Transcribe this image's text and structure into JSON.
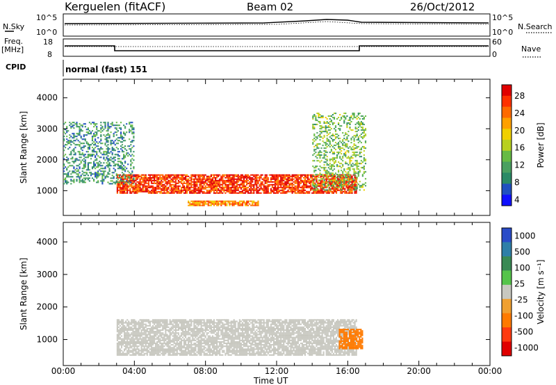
{
  "header": {
    "station": "Kerguelen (fitACF)",
    "beam": "Beam 02",
    "date": "26/Oct/2012"
  },
  "top_panels": {
    "nsky_label": "N.Sky",
    "nsearch_label": "N.Search",
    "nsky_ticks": [
      "10^5",
      "10^0"
    ],
    "nsearch_ticks": [
      "10^5",
      "10^0"
    ],
    "freq_label_line1": "Freq.",
    "freq_label_line2": "[MHz]",
    "freq_ticks": [
      "18",
      "8"
    ],
    "nave_label": "Nave",
    "nave_ticks": [
      "60",
      "0"
    ],
    "cpid_label": "CPID",
    "cpid_value": "normal (fast) 151"
  },
  "chart_data": [
    {
      "type": "heatmap",
      "name": "power",
      "ylabel": "Slant Range [km]",
      "xlabel": "Time UT",
      "xlim": [
        0,
        24
      ],
      "ylim": [
        200,
        4600
      ],
      "x_ticks": [
        "00:00",
        "04:00",
        "08:00",
        "12:00",
        "16:00",
        "20:00",
        "00:00"
      ],
      "y_ticks": [
        "1000",
        "2000",
        "3000",
        "4000"
      ],
      "colorbar": {
        "label": "Power [dB]",
        "ticks": [
          "4",
          "8",
          "12",
          "16",
          "20",
          "24",
          "28"
        ],
        "colors": [
          "#1010ff",
          "#2050c0",
          "#2a8a66",
          "#4aa060",
          "#66bb44",
          "#b8d020",
          "#f0d000",
          "#ffa000",
          "#ff6a00",
          "#ff3000",
          "#e00000"
        ]
      },
      "features": [
        {
          "desc": "main echo band",
          "time_h": [
            3.0,
            16.5
          ],
          "range_km": [
            900,
            1500
          ],
          "power_db": 26
        },
        {
          "desc": "lower band",
          "time_h": [
            7.0,
            11.0
          ],
          "range_km": [
            500,
            650
          ],
          "power_db": 22
        },
        {
          "desc": "morning weak echoes",
          "time_h": [
            0.0,
            4.0
          ],
          "range_km": [
            1200,
            3200
          ],
          "power_db": 8
        },
        {
          "desc": "afternoon structured echoes",
          "time_h": [
            14.0,
            17.0
          ],
          "range_km": [
            1000,
            3500
          ],
          "power_db": 12
        }
      ]
    },
    {
      "type": "heatmap",
      "name": "velocity",
      "ylabel": "Slant Range [km]",
      "xlabel": "Time UT",
      "xlim": [
        0,
        24
      ],
      "ylim": [
        200,
        4600
      ],
      "x_ticks": [
        "00:00",
        "04:00",
        "08:00",
        "12:00",
        "16:00",
        "20:00",
        "00:00"
      ],
      "y_ticks": [
        "1000",
        "2000",
        "3000",
        "4000"
      ],
      "colorbar": {
        "label": "Velocity [m s⁻¹]",
        "ticks": [
          "1000",
          "500",
          "100",
          "25",
          "-25",
          "-100",
          "-500",
          "-1000"
        ],
        "colors": [
          "#2a4cc8",
          "#2f7fa8",
          "#3a8a55",
          "#55c44a",
          "#c8c8c0",
          "#f0a030",
          "#ff7a00",
          "#ff3a10",
          "#e00000"
        ]
      },
      "features": [
        {
          "desc": "ground scatter band",
          "time_h": [
            3.0,
            16.5
          ],
          "range_km": [
            500,
            1600
          ],
          "velocity": 0
        },
        {
          "desc": "receding patch",
          "time_h": [
            15.5,
            16.8
          ],
          "range_km": [
            700,
            1300
          ],
          "velocity": -300
        }
      ]
    }
  ]
}
